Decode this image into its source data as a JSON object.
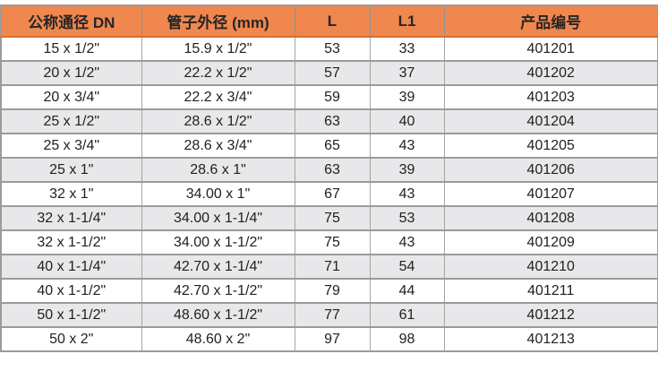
{
  "table": {
    "headers": [
      "公称通径 DN",
      "管子外径 (mm)",
      "L",
      "L1",
      "产品编号"
    ],
    "rows": [
      [
        "15 x 1/2\"",
        "15.9 x 1/2\"",
        "53",
        "33",
        "401201"
      ],
      [
        "20 x 1/2\"",
        "22.2 x 1/2\"",
        "57",
        "37",
        "401202"
      ],
      [
        "20 x 3/4\"",
        "22.2 x 3/4\"",
        "59",
        "39",
        "401203"
      ],
      [
        "25 x 1/2\"",
        "28.6 x 1/2\"",
        "63",
        "40",
        "401204"
      ],
      [
        "25 x 3/4\"",
        "28.6 x 3/4\"",
        "65",
        "43",
        "401205"
      ],
      [
        "25 x 1\"",
        "28.6 x 1\"",
        "63",
        "39",
        "401206"
      ],
      [
        "32 x 1\"",
        "34.00 x 1\"",
        "67",
        "43",
        "401207"
      ],
      [
        "32 x 1-1/4\"",
        "34.00 x 1-1/4\"",
        "75",
        "53",
        "401208"
      ],
      [
        "32 x 1-1/2\"",
        "34.00 x 1-1/2\"",
        "75",
        "43",
        "401209"
      ],
      [
        "40 x 1-1/4\"",
        "42.70 x 1-1/4\"",
        "71",
        "54",
        "401210"
      ],
      [
        "40 x 1-1/2\"",
        "42.70 x 1-1/2\"",
        "79",
        "44",
        "401211"
      ],
      [
        "50 x 1-1/2\"",
        "48.60 x 1-1/2\"",
        "77",
        "61",
        "401212"
      ],
      [
        "50 x 2\"",
        "48.60 x 2\"",
        "97",
        "98",
        "401213"
      ]
    ]
  },
  "colors": {
    "header_bg": "#f0874e",
    "header_border_bottom": "#d96f30",
    "row_alt_bg": "#e8e8ea",
    "grid_border": "#9b9b9b",
    "text": "#212121"
  }
}
